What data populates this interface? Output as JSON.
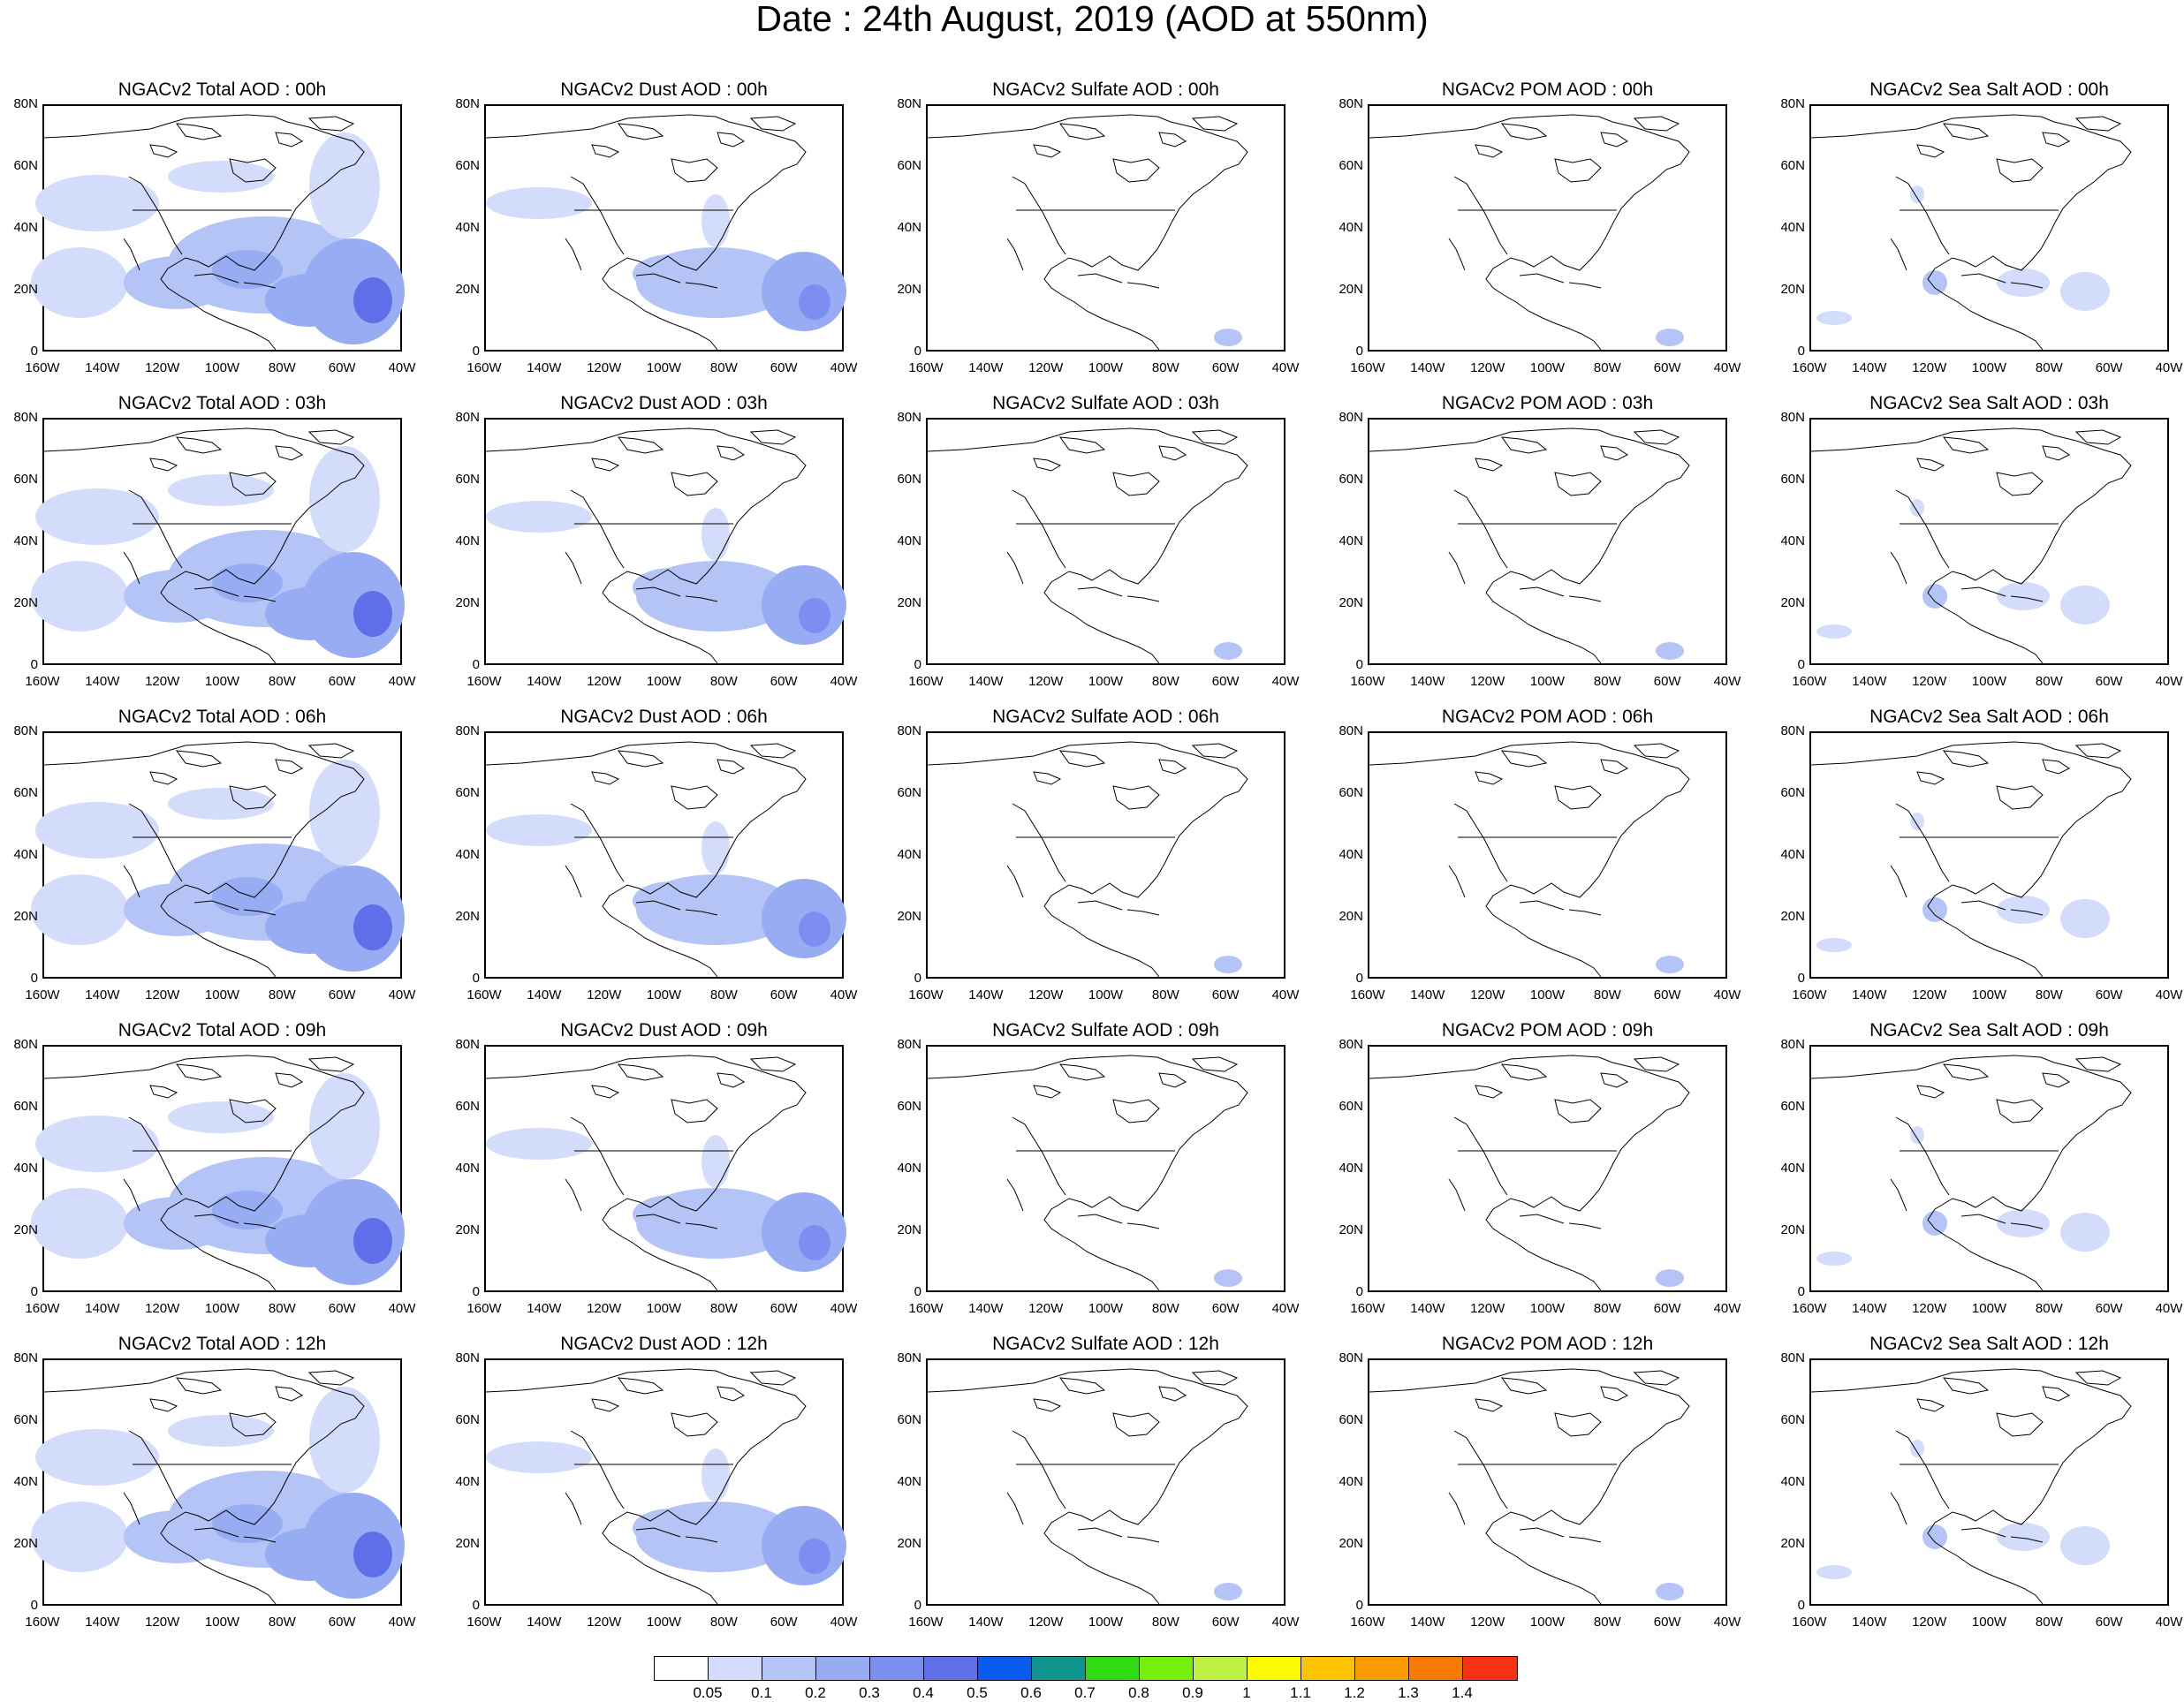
{
  "title": "Date : 24th August, 2019 (AOD at 550nm)",
  "panels": [
    [
      "NGACv2 Total AOD : 00h",
      "NGACv2 Dust AOD : 00h",
      "NGACv2 Sulfate AOD : 00h",
      "NGACv2 POM AOD : 00h",
      "NGACv2 Sea Salt AOD : 00h"
    ],
    [
      "NGACv2 Total AOD : 03h",
      "NGACv2 Dust AOD : 03h",
      "NGACv2 Sulfate AOD : 03h",
      "NGACv2 POM AOD : 03h",
      "NGACv2 Sea Salt AOD : 03h"
    ],
    [
      "NGACv2 Total AOD : 06h",
      "NGACv2 Dust AOD : 06h",
      "NGACv2 Sulfate AOD : 06h",
      "NGACv2 POM AOD : 06h",
      "NGACv2 Sea Salt AOD : 06h"
    ],
    [
      "NGACv2 Total AOD : 09h",
      "NGACv2 Dust AOD : 09h",
      "NGACv2 Sulfate AOD : 09h",
      "NGACv2 POM AOD : 09h",
      "NGACv2 Sea Salt  AOD : 09h"
    ],
    [
      "NGACv2 Total AOD  : 12h",
      "NGACv2 Dust AOD : 12h",
      "NGACv2 Sulfate AOD : 12h",
      "NGACv2 POM  AOD : 12h",
      "NGACv2 Sea Salt  AOD : 12h"
    ]
  ],
  "lat_ticks": [
    "80N",
    "60N",
    "40N",
    "20N",
    "0"
  ],
  "lon_ticks": [
    "160W",
    "140W",
    "120W",
    "100W",
    "80W",
    "60W",
    "40W"
  ],
  "colorbar": {
    "colors": [
      "#ffffff",
      "#d3dcfa",
      "#b4c4f6",
      "#98acf4",
      "#7c8ef0",
      "#5f6fe9",
      "#0a5cf0",
      "#10958e",
      "#2fdc12",
      "#75f00c",
      "#bff046",
      "#fafa00",
      "#fbc300",
      "#f99c00",
      "#f97a00",
      "#f93115"
    ],
    "labels": [
      "0.05",
      "0.1",
      "0.2",
      "0.3",
      "0.4",
      "0.5",
      "0.6",
      "0.7",
      "0.8",
      "0.9",
      "1",
      "1.1",
      "1.2",
      "1.3",
      "1.4"
    ]
  }
}
